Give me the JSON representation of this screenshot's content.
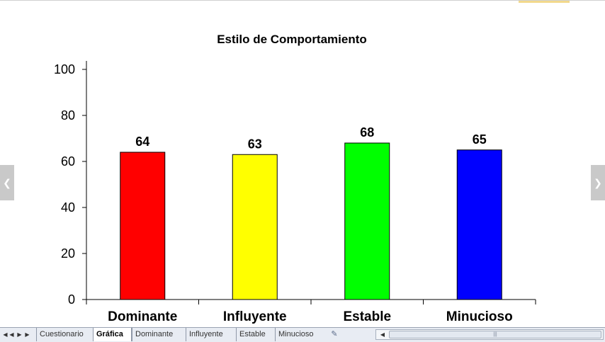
{
  "chart_data": {
    "type": "bar",
    "title": "Estilo de Comportamiento",
    "categories": [
      "Dominante",
      "Influyente",
      "Estable",
      "Minucioso"
    ],
    "values": [
      64,
      63,
      68,
      65
    ],
    "colors": [
      "#ff0000",
      "#ffff00",
      "#00ff00",
      "#0000ff"
    ],
    "ylim": [
      0,
      100
    ],
    "yticks": [
      "0",
      "20",
      "40",
      "60",
      "80",
      "100"
    ],
    "xlabel": "",
    "ylabel": "",
    "grid": false,
    "legend": "none"
  },
  "nav": {
    "left_icon": "chevron-left-icon",
    "right_icon": "chevron-right-icon"
  },
  "sheet_tabs": {
    "nav_icons": [
      "first-sheet-icon",
      "prev-sheet-icon",
      "next-sheet-icon",
      "last-sheet-icon"
    ],
    "tabs": [
      {
        "label": "Cuestionario",
        "active": false
      },
      {
        "label": "Gráfica",
        "active": true
      },
      {
        "label": "Dominante",
        "active": false
      },
      {
        "label": "Influyente",
        "active": false
      },
      {
        "label": "Estable",
        "active": false
      },
      {
        "label": "Minucioso",
        "active": false
      }
    ],
    "insert_icon": "insert-sheet-icon"
  }
}
